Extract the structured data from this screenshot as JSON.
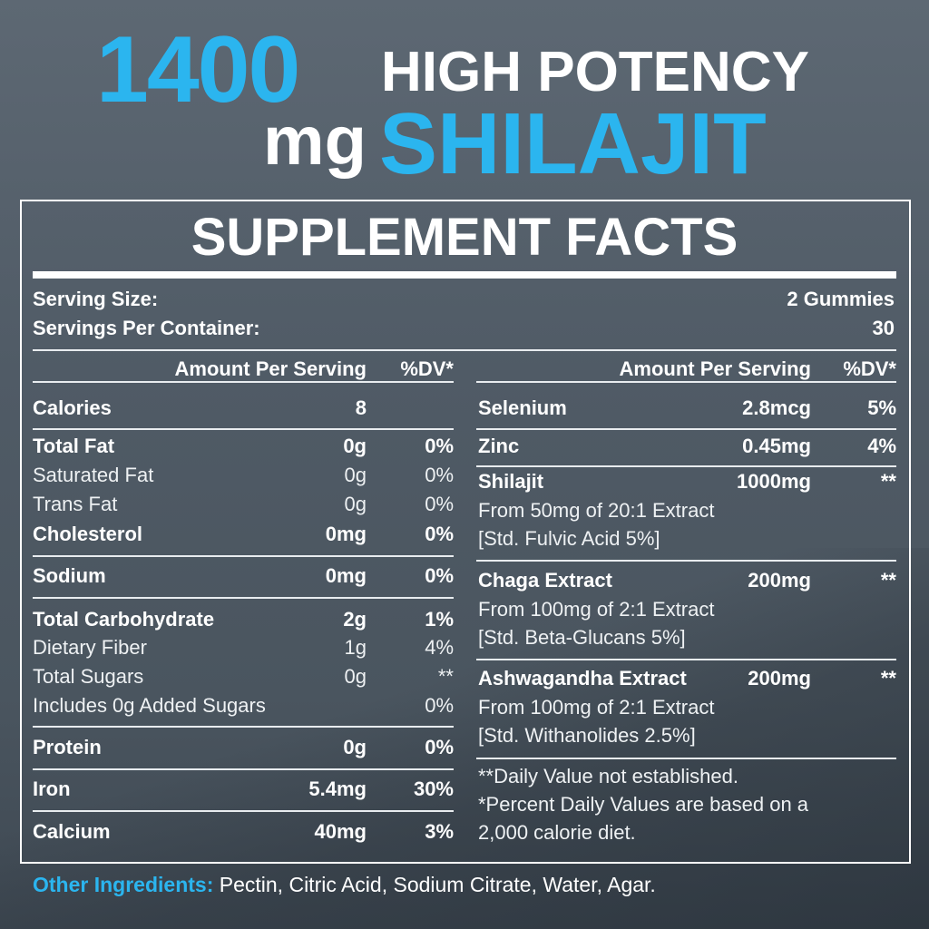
{
  "header": {
    "amount": "1400",
    "unit": "mg",
    "line1": "HIGH POTENCY",
    "line2": "SHILAJIT",
    "accent_color": "#2bb5ef"
  },
  "facts": {
    "title": "SUPPLEMENT FACTS",
    "serving_size_label": "Serving Size:",
    "serving_size": "2 Gummies",
    "servings_label": "Servings Per Container:",
    "servings": "30",
    "col_amount": "Amount Per Serving",
    "col_dv": "%DV*",
    "left": [
      {
        "name": "Calories",
        "amount": "8",
        "dv": "",
        "bold": true
      },
      {
        "name": "Total Fat",
        "amount": "0g",
        "dv": "0%",
        "bold": true
      },
      {
        "name": "Saturated Fat",
        "amount": "0g",
        "dv": "0%",
        "bold": false
      },
      {
        "name": "Trans Fat",
        "amount": "0g",
        "dv": "0%",
        "bold": false
      },
      {
        "name": "Cholesterol",
        "amount": "0mg",
        "dv": "0%",
        "bold": true
      },
      {
        "name": "Sodium",
        "amount": "0mg",
        "dv": "0%",
        "bold": true
      },
      {
        "name": "Total Carbohydrate",
        "amount": "2g",
        "dv": "1%",
        "bold": true
      },
      {
        "name": "Dietary Fiber",
        "amount": "1g",
        "dv": "4%",
        "bold": false
      },
      {
        "name": "Total Sugars",
        "amount": "0g",
        "dv": "**",
        "bold": false
      },
      {
        "name": "Includes 0g Added Sugars",
        "amount": "",
        "dv": "0%",
        "bold": false
      },
      {
        "name": "Protein",
        "amount": "0g",
        "dv": "0%",
        "bold": true
      },
      {
        "name": "Iron",
        "amount": "5.4mg",
        "dv": "30%",
        "bold": true
      },
      {
        "name": "Calcium",
        "amount": "40mg",
        "dv": "3%",
        "bold": true
      }
    ],
    "right": [
      {
        "name": "Selenium",
        "amount": "2.8mcg",
        "dv": "5%",
        "bold": true
      },
      {
        "name": "Zinc",
        "amount": "0.45mg",
        "dv": "4%",
        "bold": true
      },
      {
        "name": "Shilajit",
        "amount": "1000mg",
        "dv": "**",
        "bold": true
      },
      {
        "name": "From 50mg of 20:1 Extract",
        "amount": "",
        "dv": "",
        "bold": false
      },
      {
        "name": "[Std. Fulvic Acid 5%]",
        "amount": "",
        "dv": "",
        "bold": false
      },
      {
        "name": "Chaga Extract",
        "amount": "200mg",
        "dv": "**",
        "bold": true
      },
      {
        "name": "From 100mg of 2:1 Extract",
        "amount": "",
        "dv": "",
        "bold": false
      },
      {
        "name": "[Std. Beta-Glucans 5%]",
        "amount": "",
        "dv": "",
        "bold": false
      },
      {
        "name": "Ashwagandha Extract",
        "amount": "200mg",
        "dv": "**",
        "bold": true
      },
      {
        "name": "From 100mg of 2:1 Extract",
        "amount": "",
        "dv": "",
        "bold": false
      },
      {
        "name": "[Std. Withanolides 2.5%]",
        "amount": "",
        "dv": "",
        "bold": false
      },
      {
        "name": "**Daily Value not established.",
        "amount": "",
        "dv": "",
        "bold": false
      },
      {
        "name": "*Percent Daily Values are based on a",
        "amount": "",
        "dv": "",
        "bold": false
      },
      {
        "name": "2,000 calorie diet.",
        "amount": "",
        "dv": "",
        "bold": false
      }
    ]
  },
  "other": {
    "label": "Other Ingredients:",
    "text": "Pectin, Citric Acid, Sodium Citrate, Water, Agar."
  }
}
